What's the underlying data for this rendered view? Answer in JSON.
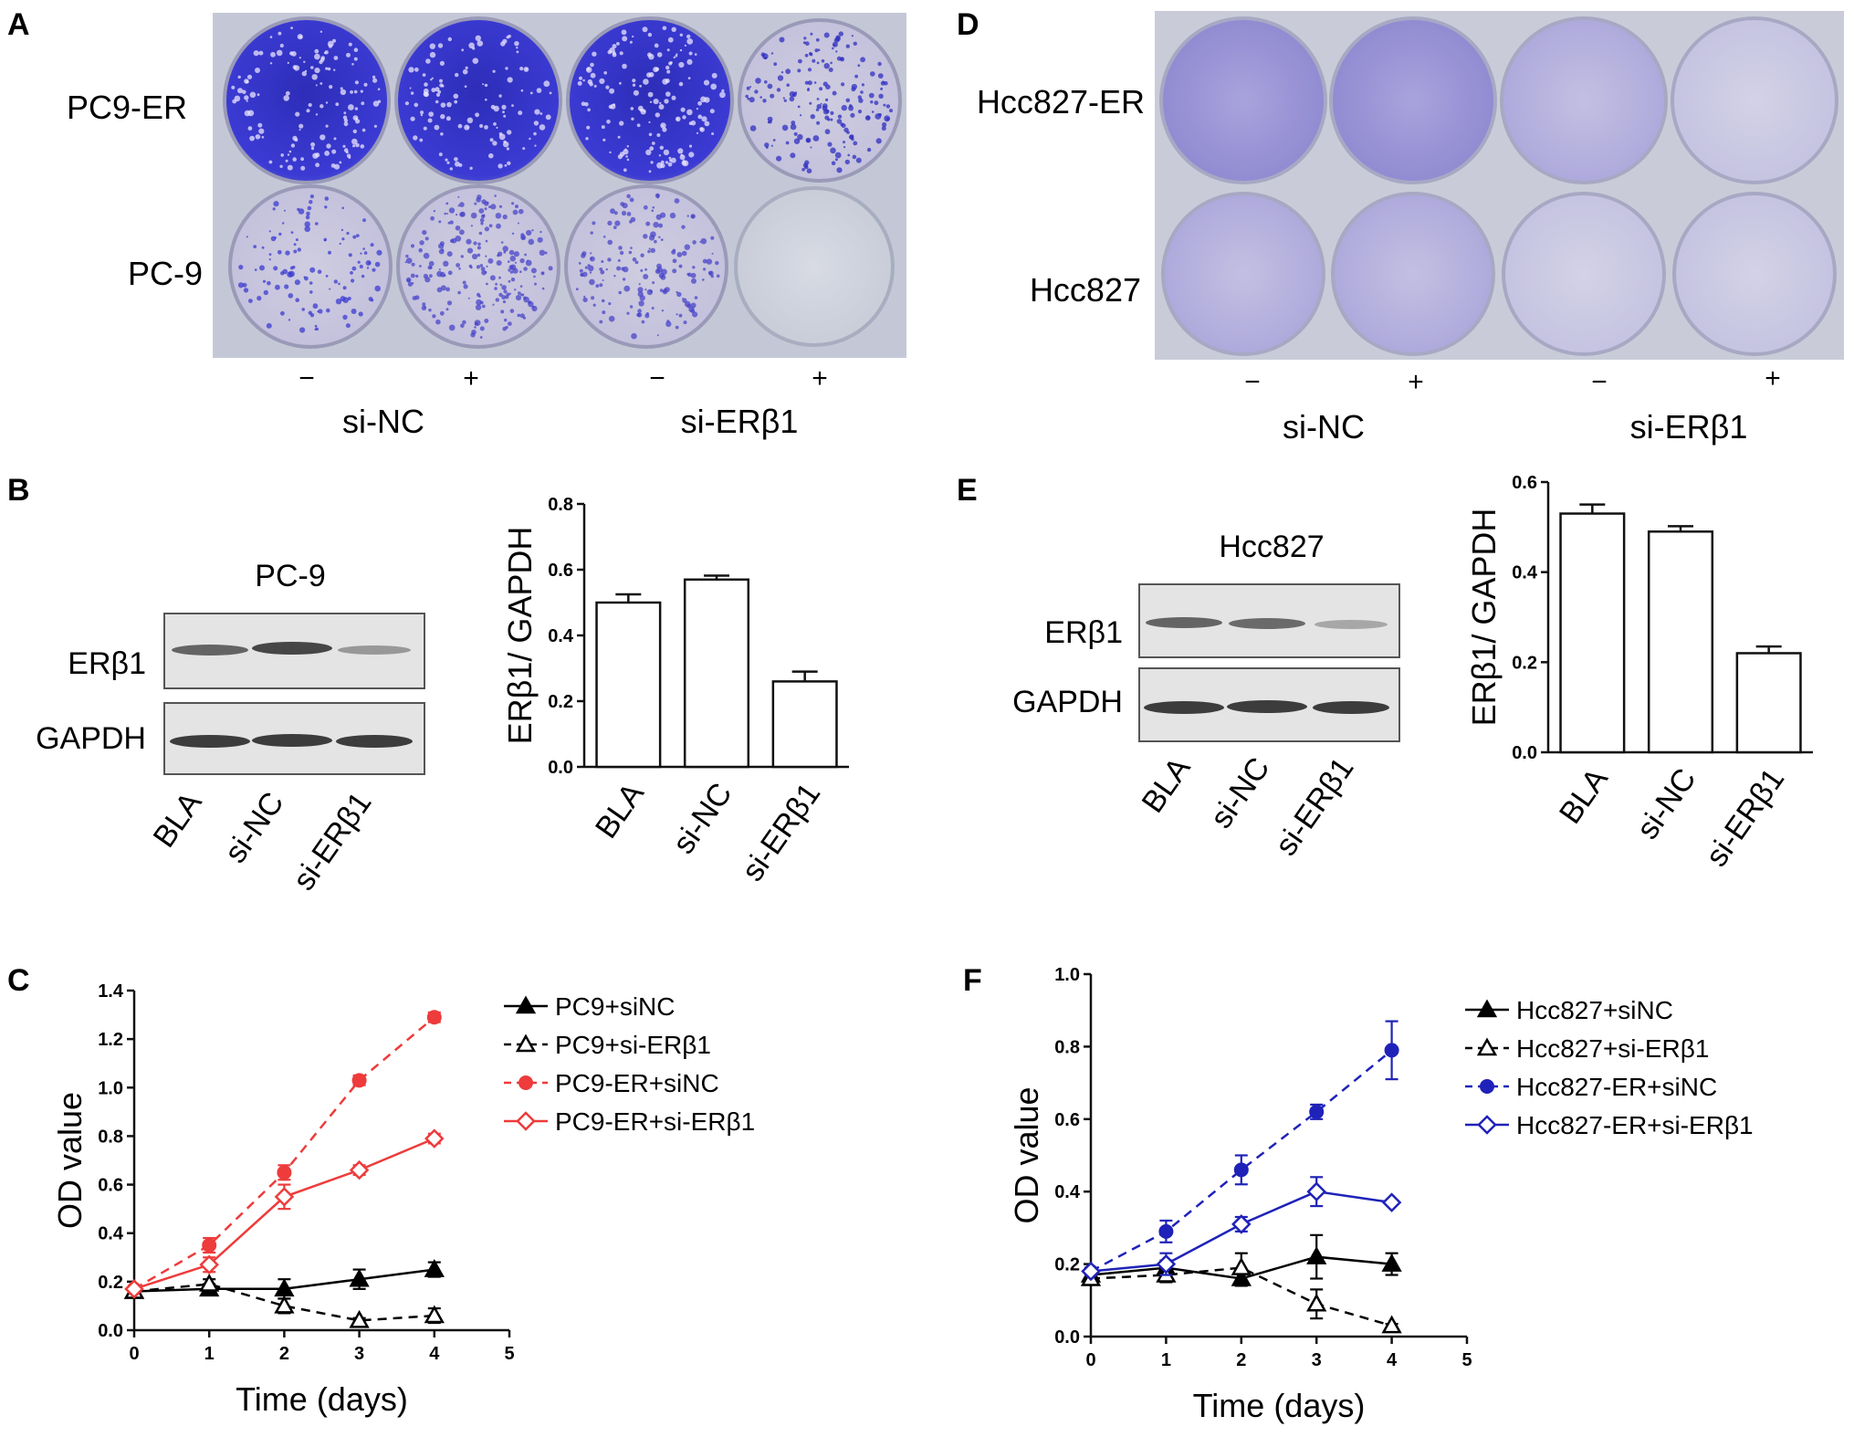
{
  "panels": {
    "A": {
      "letter": "A",
      "rows": [
        "PC9-ER",
        "PC-9"
      ],
      "signs": [
        "−",
        "+",
        "−",
        "+"
      ],
      "groups": [
        "si-NC",
        "si-ERβ1"
      ],
      "plate_color": "#3a3ad0"
    },
    "D": {
      "letter": "D",
      "rows": [
        "Hcc827-ER",
        "Hcc827"
      ],
      "signs": [
        "−",
        "+",
        "−",
        "+"
      ],
      "groups": [
        "si-NC",
        "si-ERβ1"
      ],
      "plate_color": "#8c86d0"
    },
    "B": {
      "letter": "B",
      "blot_title": "PC-9",
      "blot_rows": [
        "ERβ1",
        "GAPDH"
      ],
      "lanes": [
        "BLA",
        "si-NC",
        "si-ERβ1"
      ]
    },
    "E": {
      "letter": "E",
      "blot_title": "Hcc827",
      "blot_rows": [
        "ERβ1",
        "GAPDH"
      ],
      "lanes": [
        "BLA",
        "si-NC",
        "si-ERβ1"
      ]
    },
    "C": {
      "letter": "C"
    },
    "F": {
      "letter": "F"
    }
  },
  "chart_data": [
    {
      "id": "B",
      "type": "bar",
      "categories": [
        "BLA",
        "si-NC",
        "si-ERβ1"
      ],
      "values": [
        0.5,
        0.57,
        0.26
      ],
      "errors": [
        0.025,
        0.012,
        0.03
      ],
      "ylabel": "ERβ1/ GAPDH",
      "ylim": [
        0,
        0.8
      ],
      "yticks": [
        "0.0",
        "0.2",
        "0.4",
        "0.6",
        "0.8"
      ]
    },
    {
      "id": "E",
      "type": "bar",
      "categories": [
        "BLA",
        "si-NC",
        "si-ERβ1"
      ],
      "values": [
        0.53,
        0.49,
        0.22
      ],
      "errors": [
        0.02,
        0.012,
        0.015
      ],
      "ylabel": "ERβ1/ GAPDH",
      "ylim": [
        0,
        0.6
      ],
      "yticks": [
        "0.0",
        "0.2",
        "0.4",
        "0.6"
      ]
    },
    {
      "id": "C",
      "type": "line",
      "xlabel": "Time (days)",
      "ylabel": "OD value",
      "xlim": [
        0,
        5
      ],
      "ylim": [
        0,
        1.4
      ],
      "xticks": [
        "0",
        "1",
        "2",
        "3",
        "4",
        "5"
      ],
      "yticks": [
        "0.0",
        "0.2",
        "0.4",
        "0.6",
        "0.8",
        "1.0",
        "1.2",
        "1.4"
      ],
      "legend_position": "right",
      "x": [
        0,
        1,
        2,
        3,
        4
      ],
      "series": [
        {
          "name": "PC9+siNC",
          "values": [
            0.16,
            0.17,
            0.17,
            0.21,
            0.25
          ],
          "errors": [
            0.01,
            0.02,
            0.04,
            0.04,
            0.03
          ],
          "color": "#000000",
          "dashed": false,
          "marker": "triangle-filled"
        },
        {
          "name": "PC9+si-ERβ1",
          "values": [
            0.16,
            0.19,
            0.1,
            0.04,
            0.06
          ],
          "errors": [
            0.01,
            0.02,
            0.03,
            0.01,
            0.03
          ],
          "color": "#000000",
          "dashed": true,
          "marker": "triangle-open"
        },
        {
          "name": "PC9-ER+siNC",
          "values": [
            0.17,
            0.35,
            0.65,
            1.03,
            1.29
          ],
          "errors": [
            0.01,
            0.03,
            0.03,
            0.02,
            0.02
          ],
          "color": "#ee3b3b",
          "dashed": true,
          "marker": "circle-filled"
        },
        {
          "name": "PC9-ER+si-ERβ1",
          "values": [
            0.17,
            0.27,
            0.55,
            0.66,
            0.79
          ],
          "errors": [
            0.01,
            0.03,
            0.05,
            0.02,
            0.02
          ],
          "color": "#ee3b3b",
          "dashed": false,
          "marker": "diamond-open"
        }
      ]
    },
    {
      "id": "F",
      "type": "line",
      "xlabel": "Time (days)",
      "ylabel": "OD value",
      "xlim": [
        0,
        5
      ],
      "ylim": [
        0,
        1.0
      ],
      "xticks": [
        "0",
        "1",
        "2",
        "3",
        "4",
        "5"
      ],
      "yticks": [
        "0.0",
        "0.2",
        "0.4",
        "0.6",
        "0.8",
        "1.0"
      ],
      "legend_position": "right",
      "x": [
        0,
        1,
        2,
        3,
        4
      ],
      "series": [
        {
          "name": "Hcc827+siNC",
          "values": [
            0.17,
            0.19,
            0.16,
            0.22,
            0.2
          ],
          "errors": [
            0.01,
            0.02,
            0.02,
            0.06,
            0.03
          ],
          "color": "#000000",
          "dashed": false,
          "marker": "triangle-filled"
        },
        {
          "name": "Hcc827+si-ERβ1",
          "values": [
            0.16,
            0.17,
            0.19,
            0.09,
            0.03
          ],
          "errors": [
            0.01,
            0.02,
            0.04,
            0.04,
            0.005
          ],
          "color": "#000000",
          "dashed": true,
          "marker": "triangle-open"
        },
        {
          "name": "Hcc827-ER+siNC",
          "values": [
            0.18,
            0.29,
            0.46,
            0.62,
            0.79
          ],
          "errors": [
            0.01,
            0.03,
            0.04,
            0.02,
            0.08
          ],
          "color": "#1f22b8",
          "dashed": true,
          "marker": "circle-filled"
        },
        {
          "name": "Hcc827-ER+si-ERβ1",
          "values": [
            0.18,
            0.2,
            0.31,
            0.4,
            0.37
          ],
          "errors": [
            0.01,
            0.03,
            0.02,
            0.04,
            0.005
          ],
          "color": "#1f22b8",
          "dashed": false,
          "marker": "diamond-open"
        }
      ]
    }
  ]
}
